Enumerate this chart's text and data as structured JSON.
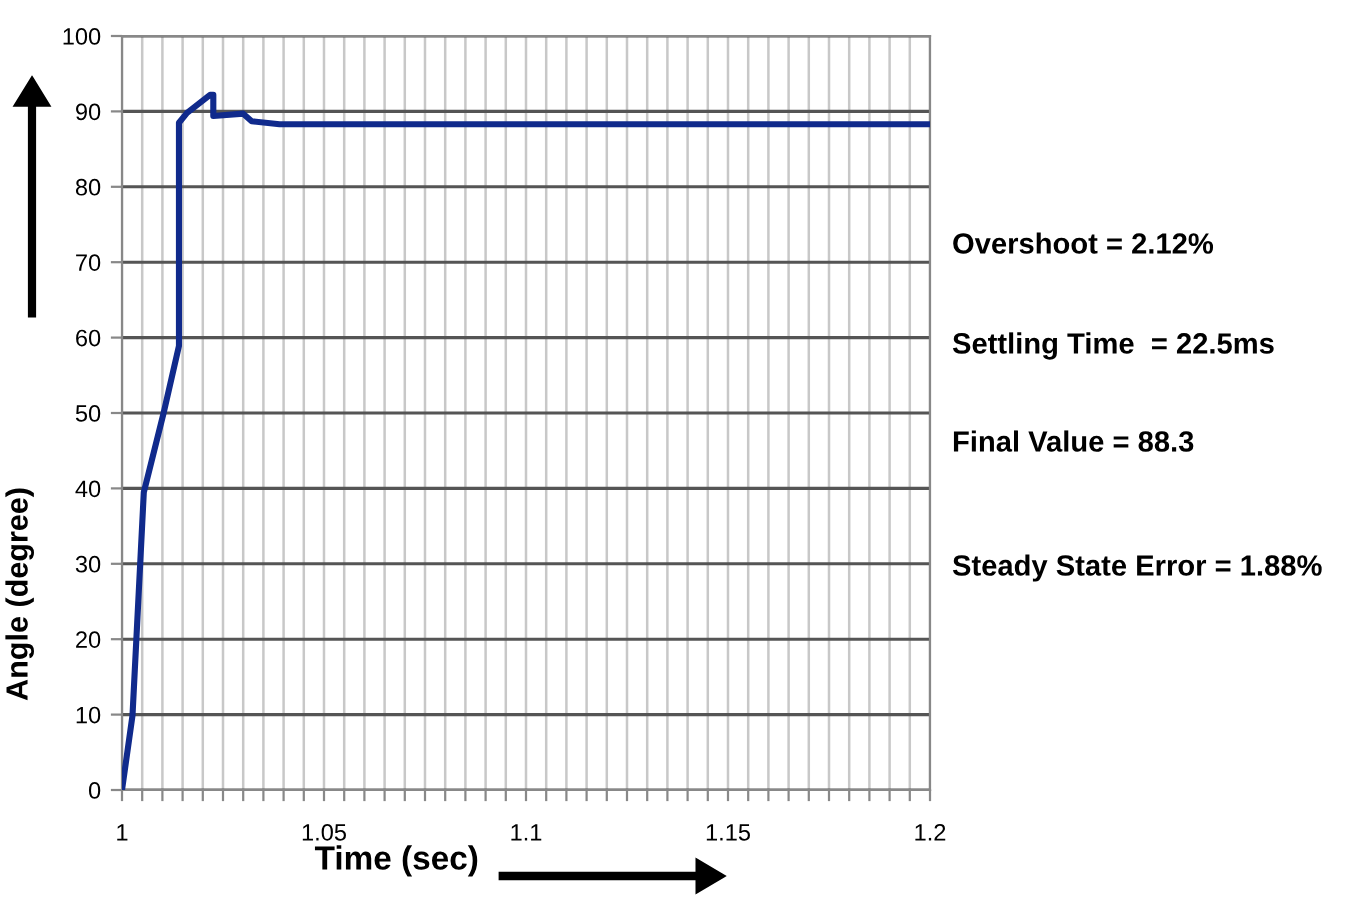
{
  "chart_data": {
    "type": "line",
    "xlabel": "Time (sec)",
    "ylabel": "Angle (degree)",
    "series": [
      {
        "color": "#102a8c",
        "x": [
          1.0,
          1.0026,
          1.0054,
          1.0103,
          1.0141,
          1.0141,
          1.0161,
          1.0218,
          1.0226,
          1.0226,
          1.03,
          1.0321,
          1.039,
          1.2
        ],
        "values": [
          0,
          9.9,
          39.5,
          50,
          58.9,
          88.5,
          89.8,
          92.2,
          92.2,
          89.4,
          89.7,
          88.7,
          88.3,
          88.3
        ]
      }
    ],
    "xlim": [
      1.0,
      1.2
    ],
    "ylim": [
      0,
      100
    ],
    "xticks": [
      1,
      {
        "value": 1.005,
        "label": null
      },
      {
        "value": 1.01,
        "label": null
      },
      {
        "value": 1.015,
        "label": null
      },
      {
        "value": 1.02,
        "label": null
      },
      {
        "value": 1.025,
        "label": null
      },
      {
        "value": 1.03,
        "label": null
      },
      {
        "value": 1.035,
        "label": null
      },
      {
        "value": 1.04,
        "label": null
      },
      {
        "value": 1.045,
        "label": null
      },
      1.05,
      {
        "value": 1.055,
        "label": null
      },
      {
        "value": 1.06,
        "label": null
      },
      {
        "value": 1.065,
        "label": null
      },
      {
        "value": 1.07,
        "label": null
      },
      {
        "value": 1.075,
        "label": null
      },
      {
        "value": 1.08,
        "label": null
      },
      {
        "value": 1.085,
        "label": null
      },
      {
        "value": 1.09,
        "label": null
      },
      {
        "value": 1.095,
        "label": null
      },
      1.1,
      {
        "value": 1.105,
        "label": null
      },
      {
        "value": 1.11,
        "label": null
      },
      {
        "value": 1.115,
        "label": null
      },
      {
        "value": 1.12,
        "label": null
      },
      {
        "value": 1.125,
        "label": null
      },
      {
        "value": 1.13,
        "label": null
      },
      {
        "value": 1.135,
        "label": null
      },
      {
        "value": 1.14,
        "label": null
      },
      {
        "value": 1.145,
        "label": null
      },
      1.15,
      {
        "value": 1.155,
        "label": null
      },
      {
        "value": 1.16,
        "label": null
      },
      {
        "value": 1.165,
        "label": null
      },
      {
        "value": 1.17,
        "label": null
      },
      {
        "value": 1.175,
        "label": null
      },
      {
        "value": 1.18,
        "label": null
      },
      {
        "value": 1.185,
        "label": null
      },
      {
        "value": 1.19,
        "label": null
      },
      {
        "value": 1.195,
        "label": null
      },
      1.2
    ],
    "yticks": [
      0,
      10,
      20,
      30,
      40,
      50,
      60,
      70,
      80,
      90,
      100
    ],
    "grid": true,
    "marker": "none",
    "line_style": "solid",
    "annotations": [
      "Overshoot = 2.12%",
      "Settling Time  = 22.5ms",
      "Final Value = 88.3",
      "Steady State Error = 1.88%"
    ]
  }
}
